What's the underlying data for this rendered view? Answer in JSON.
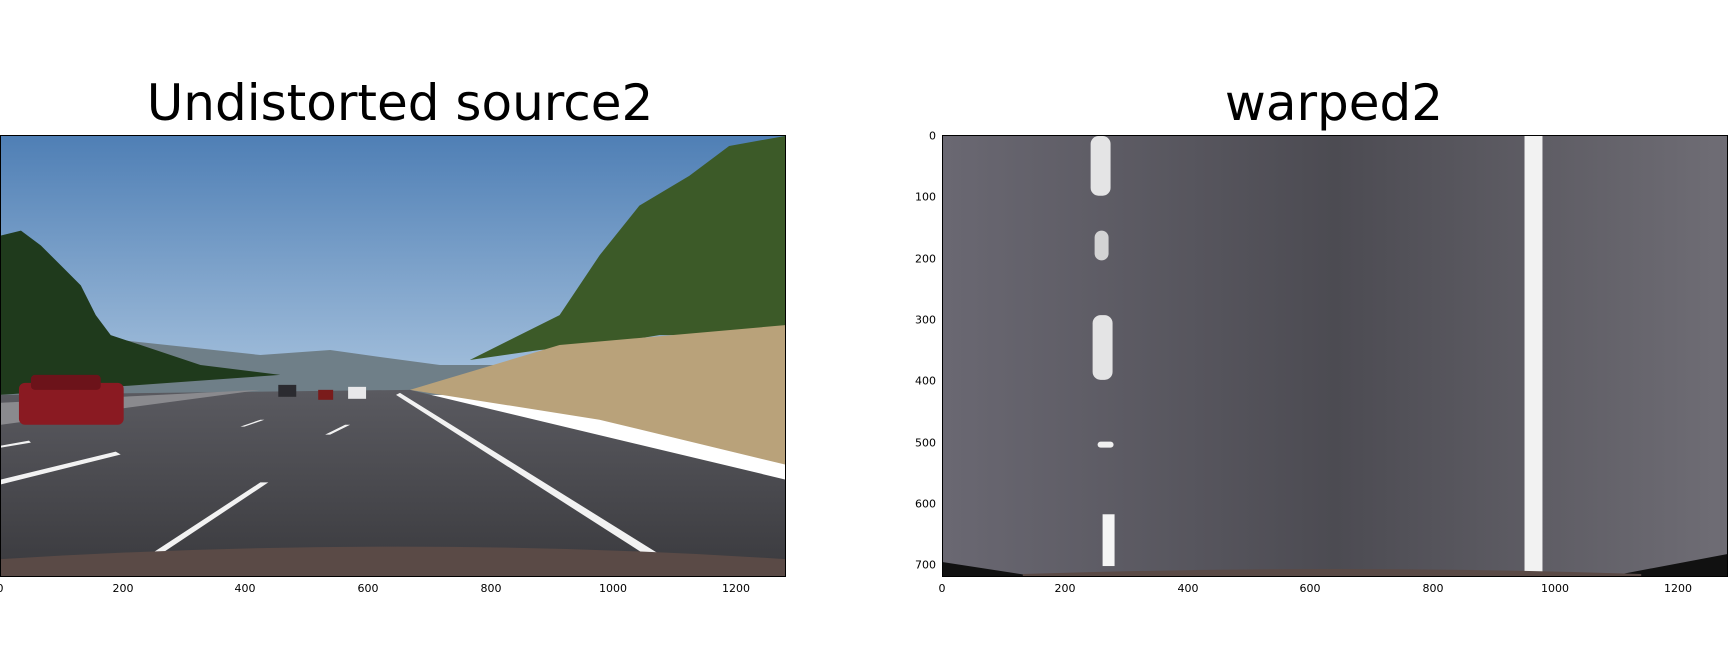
{
  "panels": [
    {
      "title": "Undistorted source2",
      "x_ticks": [
        "0",
        "200",
        "400",
        "600",
        "800",
        "1000",
        "1200"
      ],
      "y_ticks": []
    },
    {
      "title": "warped2",
      "x_ticks": [
        "0",
        "200",
        "400",
        "600",
        "800",
        "1000",
        "1200"
      ],
      "y_ticks": [
        "0",
        "100",
        "200",
        "300",
        "400",
        "500",
        "600",
        "700"
      ]
    }
  ],
  "scene": {
    "sky_color": "#5a88b8",
    "road_color": "#4a4a4e",
    "grass_color": "#b9a27a",
    "tree_color": "#2f4a22",
    "car_color": "#8a1a22",
    "lane_color": "#f2f2f2"
  }
}
